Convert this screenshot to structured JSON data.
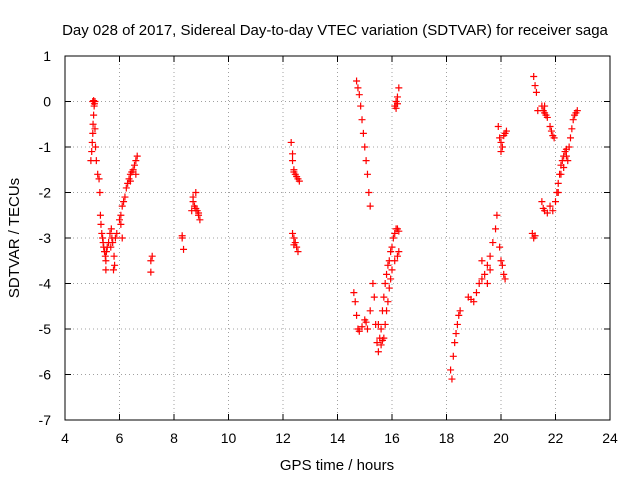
{
  "chart_data": {
    "type": "scatter",
    "title": "Day 028 of 2017, Sidereal Day-to-day VTEC variation (SDTVAR) for receiver saga",
    "xlabel": "GPS time / hours",
    "ylabel": "SDTVAR / TECUs",
    "xlim": [
      4,
      24
    ],
    "ylim": [
      -7,
      1
    ],
    "xticks": [
      4,
      6,
      8,
      10,
      12,
      14,
      16,
      18,
      20,
      22,
      24
    ],
    "yticks": [
      1,
      0,
      -1,
      -2,
      -3,
      -4,
      -5,
      -6,
      -7
    ],
    "grid": true,
    "marker": "+",
    "color": "#ff0000",
    "series": [
      {
        "name": "SDTVAR",
        "points": [
          [
            4.95,
            -1.3
          ],
          [
            4.98,
            -1.1
          ],
          [
            5.0,
            -0.9
          ],
          [
            5.02,
            -0.7
          ],
          [
            5.03,
            -0.5
          ],
          [
            5.05,
            -0.3
          ],
          [
            5.02,
            0.0
          ],
          [
            5.05,
            0.02
          ],
          [
            5.08,
            -0.05
          ],
          [
            5.1,
            0.0
          ],
          [
            5.07,
            -0.1
          ],
          [
            5.1,
            -0.6
          ],
          [
            5.12,
            -1.0
          ],
          [
            5.15,
            -1.3
          ],
          [
            5.2,
            -1.6
          ],
          [
            5.25,
            -1.7
          ],
          [
            5.28,
            -2.0
          ],
          [
            5.3,
            -2.5
          ],
          [
            5.32,
            -2.7
          ],
          [
            5.35,
            -2.9
          ],
          [
            5.38,
            -3.0
          ],
          [
            5.4,
            -3.1
          ],
          [
            5.42,
            -3.2
          ],
          [
            5.45,
            -3.3
          ],
          [
            5.48,
            -3.4
          ],
          [
            5.5,
            -3.5
          ],
          [
            5.52,
            -3.3
          ],
          [
            5.55,
            -3.2
          ],
          [
            5.5,
            -3.7
          ],
          [
            5.6,
            -3.1
          ],
          [
            5.65,
            -2.9
          ],
          [
            5.68,
            -3.2
          ],
          [
            5.7,
            -2.8
          ],
          [
            5.72,
            -3.0
          ],
          [
            5.75,
            -3.1
          ],
          [
            5.8,
            -3.4
          ],
          [
            5.82,
            -3.6
          ],
          [
            5.78,
            -3.7
          ],
          [
            5.85,
            -3.0
          ],
          [
            5.9,
            -2.9
          ],
          [
            6.0,
            -2.6
          ],
          [
            6.05,
            -2.5
          ],
          [
            6.1,
            -2.3
          ],
          [
            6.15,
            -2.2
          ],
          [
            6.2,
            -2.1
          ],
          [
            6.25,
            -1.9
          ],
          [
            6.3,
            -1.8
          ],
          [
            6.35,
            -1.7
          ],
          [
            6.4,
            -1.6
          ],
          [
            6.45,
            -1.55
          ],
          [
            6.5,
            -1.5
          ],
          [
            6.55,
            -1.4
          ],
          [
            6.6,
            -1.3
          ],
          [
            6.65,
            -1.2
          ],
          [
            6.4,
            -1.75
          ],
          [
            6.6,
            -1.6
          ],
          [
            6.1,
            -3.0
          ],
          [
            6.05,
            -2.7
          ],
          [
            7.15,
            -3.5
          ],
          [
            7.2,
            -3.4
          ],
          [
            7.15,
            -3.75
          ],
          [
            8.3,
            -2.95
          ],
          [
            8.35,
            -3.25
          ],
          [
            8.3,
            -3.0
          ],
          [
            8.65,
            -2.4
          ],
          [
            8.7,
            -2.2
          ],
          [
            8.75,
            -2.3
          ],
          [
            8.8,
            -2.0
          ],
          [
            8.85,
            -2.4
          ],
          [
            8.9,
            -2.5
          ],
          [
            8.95,
            -2.6
          ],
          [
            8.7,
            -2.1
          ],
          [
            8.8,
            -2.35
          ],
          [
            8.9,
            -2.45
          ],
          [
            12.3,
            -0.9
          ],
          [
            12.35,
            -1.15
          ],
          [
            12.35,
            -1.3
          ],
          [
            12.4,
            -1.55
          ],
          [
            12.45,
            -1.6
          ],
          [
            12.5,
            -1.65
          ],
          [
            12.55,
            -1.7
          ],
          [
            12.6,
            -1.75
          ],
          [
            12.4,
            -1.5
          ],
          [
            12.35,
            -2.9
          ],
          [
            12.4,
            -3.0
          ],
          [
            12.45,
            -3.1
          ],
          [
            12.5,
            -3.2
          ],
          [
            12.55,
            -3.3
          ],
          [
            12.4,
            -3.15
          ],
          [
            14.6,
            -4.2
          ],
          [
            14.65,
            -4.4
          ],
          [
            14.7,
            -4.7
          ],
          [
            14.75,
            -5.0
          ],
          [
            14.8,
            -5.05
          ],
          [
            14.9,
            -4.95
          ],
          [
            15.0,
            -4.8
          ],
          [
            15.05,
            -4.85
          ],
          [
            15.1,
            -5.0
          ],
          [
            15.2,
            -4.6
          ],
          [
            15.3,
            -4.0
          ],
          [
            15.35,
            -4.3
          ],
          [
            15.4,
            -4.9
          ],
          [
            15.45,
            -5.3
          ],
          [
            15.5,
            -5.5
          ],
          [
            15.55,
            -5.2
          ],
          [
            15.6,
            -5.0
          ],
          [
            15.65,
            -4.6
          ],
          [
            15.7,
            -4.3
          ],
          [
            15.75,
            -4.0
          ],
          [
            15.8,
            -3.8
          ],
          [
            15.85,
            -3.6
          ],
          [
            15.9,
            -3.5
          ],
          [
            15.95,
            -3.3
          ],
          [
            16.0,
            -3.2
          ],
          [
            16.05,
            -3.0
          ],
          [
            16.1,
            -2.9
          ],
          [
            16.15,
            -2.8
          ],
          [
            16.2,
            -2.8
          ],
          [
            16.25,
            -2.85
          ],
          [
            15.7,
            -5.2
          ],
          [
            15.75,
            -4.9
          ],
          [
            15.8,
            -4.6
          ],
          [
            15.85,
            -4.4
          ],
          [
            15.9,
            -4.1
          ],
          [
            15.95,
            -3.9
          ],
          [
            16.0,
            -3.7
          ],
          [
            16.1,
            -3.5
          ],
          [
            16.2,
            -3.4
          ],
          [
            16.25,
            -3.3
          ],
          [
            15.6,
            -5.35
          ],
          [
            15.65,
            -5.25
          ],
          [
            15.5,
            -4.9
          ],
          [
            14.7,
            0.45
          ],
          [
            14.75,
            0.3
          ],
          [
            14.8,
            0.15
          ],
          [
            14.85,
            -0.1
          ],
          [
            14.9,
            -0.4
          ],
          [
            14.95,
            -0.7
          ],
          [
            15.0,
            -1.0
          ],
          [
            15.05,
            -1.3
          ],
          [
            15.1,
            -1.6
          ],
          [
            15.15,
            -2.0
          ],
          [
            15.2,
            -2.3
          ],
          [
            16.1,
            -0.1
          ],
          [
            16.15,
            0.0
          ],
          [
            16.2,
            0.1
          ],
          [
            16.25,
            0.3
          ],
          [
            16.15,
            -0.15
          ],
          [
            16.2,
            -0.05
          ],
          [
            18.15,
            -5.9
          ],
          [
            18.2,
            -6.1
          ],
          [
            18.25,
            -5.6
          ],
          [
            18.3,
            -5.3
          ],
          [
            18.35,
            -5.1
          ],
          [
            18.4,
            -4.9
          ],
          [
            18.45,
            -4.7
          ],
          [
            18.5,
            -4.6
          ],
          [
            18.8,
            -4.3
          ],
          [
            18.9,
            -4.35
          ],
          [
            19.0,
            -4.4
          ],
          [
            19.1,
            -4.2
          ],
          [
            19.2,
            -4.0
          ],
          [
            19.3,
            -3.9
          ],
          [
            19.4,
            -3.8
          ],
          [
            19.5,
            -3.6
          ],
          [
            19.6,
            -3.4
          ],
          [
            19.7,
            -3.1
          ],
          [
            19.8,
            -2.8
          ],
          [
            19.85,
            -2.5
          ],
          [
            19.5,
            -4.0
          ],
          [
            19.3,
            -3.5
          ],
          [
            19.6,
            -3.7
          ],
          [
            20.0,
            -3.5
          ],
          [
            20.05,
            -3.6
          ],
          [
            20.1,
            -3.8
          ],
          [
            20.15,
            -3.9
          ],
          [
            19.95,
            -3.2
          ],
          [
            19.9,
            -0.55
          ],
          [
            19.95,
            -0.8
          ],
          [
            20.0,
            -0.9
          ],
          [
            20.05,
            -1.0
          ],
          [
            20.1,
            -0.75
          ],
          [
            20.15,
            -0.7
          ],
          [
            20.2,
            -0.65
          ],
          [
            20.0,
            -1.1
          ],
          [
            21.15,
            -2.9
          ],
          [
            21.2,
            -3.0
          ],
          [
            21.25,
            -2.95
          ],
          [
            21.2,
            0.55
          ],
          [
            21.25,
            0.35
          ],
          [
            21.3,
            0.2
          ],
          [
            21.35,
            -0.2
          ],
          [
            21.5,
            -0.1
          ],
          [
            21.55,
            -0.2
          ],
          [
            21.6,
            -0.25
          ],
          [
            21.65,
            -0.3
          ],
          [
            21.7,
            -0.35
          ],
          [
            21.8,
            -0.55
          ],
          [
            21.85,
            -0.65
          ],
          [
            21.9,
            -0.75
          ],
          [
            21.95,
            -0.8
          ],
          [
            21.6,
            -0.1
          ],
          [
            21.5,
            -2.2
          ],
          [
            21.55,
            -2.35
          ],
          [
            21.6,
            -2.4
          ],
          [
            21.7,
            -2.45
          ],
          [
            21.8,
            -2.3
          ],
          [
            21.9,
            -2.4
          ],
          [
            22.0,
            -2.2
          ],
          [
            22.05,
            -2.0
          ],
          [
            22.1,
            -1.8
          ],
          [
            22.15,
            -1.6
          ],
          [
            22.2,
            -1.4
          ],
          [
            22.25,
            -1.3
          ],
          [
            22.3,
            -1.2
          ],
          [
            22.35,
            -1.1
          ],
          [
            22.4,
            -1.05
          ],
          [
            22.45,
            -1.3
          ],
          [
            22.5,
            -1.0
          ],
          [
            22.55,
            -0.8
          ],
          [
            22.6,
            -0.6
          ],
          [
            22.65,
            -0.4
          ],
          [
            22.7,
            -0.3
          ],
          [
            22.75,
            -0.25
          ],
          [
            22.8,
            -0.2
          ],
          [
            22.2,
            -1.6
          ],
          [
            22.3,
            -1.45
          ],
          [
            22.1,
            -2.0
          ],
          [
            22.4,
            -1.2
          ]
        ]
      }
    ]
  }
}
